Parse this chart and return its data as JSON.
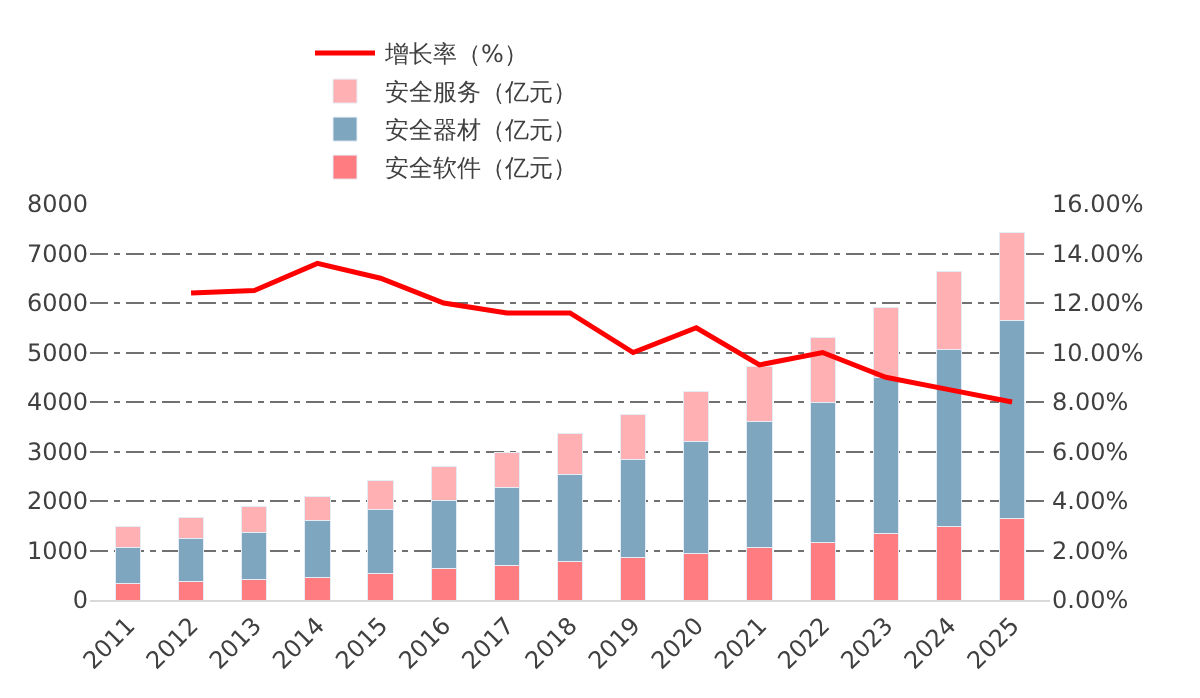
{
  "chart_data": {
    "type": "bar",
    "stacked": true,
    "categories": [
      "2011",
      "2012",
      "2013",
      "2014",
      "2015",
      "2016",
      "2017",
      "2018",
      "2019",
      "2020",
      "2021",
      "2022",
      "2023",
      "2024",
      "2025"
    ],
    "series": [
      {
        "name": "安全软件（亿元）",
        "color": "#ff7c80",
        "values": [
          330,
          370,
          410,
          460,
          540,
          630,
          690,
          770,
          850,
          940,
          1060,
          1160,
          1350,
          1480,
          1650
        ]
      },
      {
        "name": "安全器材（亿元）",
        "color": "#7fa6bf",
        "values": [
          730,
          880,
          960,
          1150,
          1290,
          1380,
          1580,
          1760,
          1990,
          2260,
          2540,
          2840,
          3140,
          3590,
          3990
        ]
      },
      {
        "name": "安全服务（亿元）",
        "color": "#ffb0b3",
        "values": [
          420,
          410,
          510,
          490,
          580,
          680,
          720,
          830,
          910,
          1020,
          1110,
          1300,
          1420,
          1560,
          1780
        ]
      },
      {
        "name": "增长率（%）",
        "type": "line",
        "axis": "y2",
        "color": "#ff0000",
        "marker": "none",
        "values": [
          null,
          12.4,
          12.5,
          13.6,
          13.0,
          12.0,
          11.6,
          11.6,
          10.0,
          11.0,
          9.5,
          10.0,
          9.0,
          8.5,
          8.0
        ]
      }
    ],
    "ylim": [
      0,
      8000
    ],
    "yticks": [
      0,
      1000,
      2000,
      3000,
      4000,
      5000,
      6000,
      7000,
      8000
    ],
    "y2lim": [
      0,
      16
    ],
    "y2ticks": [
      {
        "value": 0,
        "label": "0.00%"
      },
      {
        "value": 2,
        "label": "2.00%"
      },
      {
        "value": 4,
        "label": "4.00%"
      },
      {
        "value": 6,
        "label": "6.00%"
      },
      {
        "value": 8,
        "label": "8.00%"
      },
      {
        "value": 10,
        "label": "10.00%"
      },
      {
        "value": 12,
        "label": "12.00%"
      },
      {
        "value": 14,
        "label": "14.00%"
      },
      {
        "value": 16,
        "label": "16.00%"
      }
    ],
    "grid": "y",
    "legend": "top"
  }
}
